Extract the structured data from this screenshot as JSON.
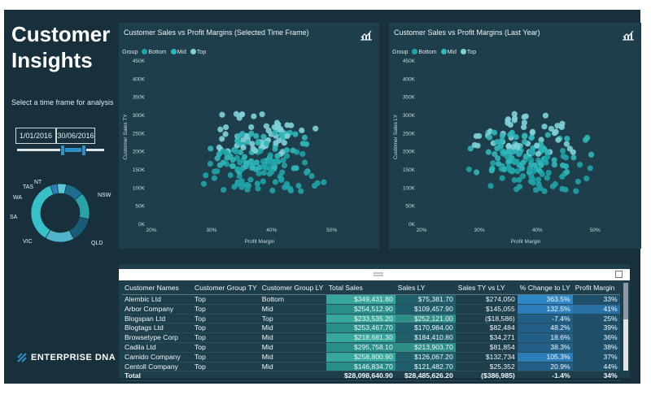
{
  "app": {
    "title_line1": "Customer",
    "title_line2": "Insights",
    "subtitle": "Select a time frame for analysis",
    "date_start": "1/01/2016",
    "date_end": "30/06/2016",
    "logo_text": "ENTERPRISE DNA"
  },
  "donut": {
    "labels": [
      "NT",
      "TAS",
      "WA",
      "SA",
      "VIC",
      "QLD",
      "NSW"
    ],
    "colors": [
      "#2e7fb6",
      "#5bc6d6",
      "#1f6e8f",
      "#2aa3a8",
      "#195c77",
      "#4fb4c9",
      "#38c0c8"
    ]
  },
  "colors": {
    "bottom": "#1fa3a6",
    "mid": "#2fb7b9",
    "top": "#7fd1d9"
  },
  "scatter1": {
    "title": "Customer Sales vs Profit Margins (Selected Time Frame)",
    "legend_label": "Group",
    "legend": [
      "Bottom",
      "Mid",
      "Top"
    ],
    "yticks": [
      "450K",
      "400K",
      "350K",
      "300K",
      "250K",
      "200K",
      "150K",
      "100K",
      "50K",
      "0K"
    ],
    "xticks": [
      "20%",
      "30%",
      "40%",
      "50%"
    ],
    "ylabel": "Customer Sales TY",
    "xlabel": "Profit Margin"
  },
  "scatter2": {
    "title": "Customer Sales vs Profit Margins (Last Year)",
    "legend_label": "Group",
    "legend": [
      "Bottom",
      "Mid",
      "Top"
    ],
    "yticks": [
      "450K",
      "400K",
      "350K",
      "300K",
      "250K",
      "200K",
      "150K",
      "100K",
      "50K",
      "0K"
    ],
    "xticks": [
      "20%",
      "30%",
      "40%",
      "50%"
    ],
    "ylabel": "Customer Sales LY",
    "xlabel": "Profit Margin"
  },
  "table": {
    "headers": [
      "Customer Names",
      "Customer Group TY",
      "Customer Group LY",
      "Total Sales",
      "Sales LY",
      "Sales TY vs LY",
      "% Change to LY",
      "Profit Margin"
    ],
    "rows": [
      [
        "Alembic Ltd",
        "Top",
        "Bottom",
        "$349,431.80",
        "$75,381.70",
        "$274,050",
        "363.5%",
        "33%"
      ],
      [
        "Arbor Company",
        "Top",
        "Mid",
        "$254,512.90",
        "$109,457.90",
        "$145,055",
        "132.5%",
        "41%"
      ],
      [
        "Blogspan Ltd",
        "Top",
        "Top",
        "$233,535.20",
        "$252,121.00",
        "($18,586)",
        "-7.4%",
        "25%"
      ],
      [
        "Blogtags Ltd",
        "Top",
        "Mid",
        "$253,467.70",
        "$170,984.00",
        "$82,484",
        "48.2%",
        "39%"
      ],
      [
        "Browsetype Corp",
        "Top",
        "Mid",
        "$218,681.30",
        "$184,410.80",
        "$34,271",
        "18.6%",
        "36%"
      ],
      [
        "Cadila Ltd",
        "Top",
        "Mid",
        "$295,758.10",
        "$213,903.70",
        "$81,854",
        "38.3%",
        "38%"
      ],
      [
        "Camido Company",
        "Top",
        "Mid",
        "$258,800.90",
        "$126,067.20",
        "$132,734",
        "105.3%",
        "37%"
      ],
      [
        "Centoll Company",
        "Top",
        "Mid",
        "$146,834.70",
        "$121,482.70",
        "$25,352",
        "20.9%",
        "44%"
      ]
    ],
    "total": [
      "Total",
      "",
      "",
      "$28,098,640.90",
      "$28,485,626.20",
      "($386,985)",
      "-1.4%",
      "34%"
    ]
  }
}
